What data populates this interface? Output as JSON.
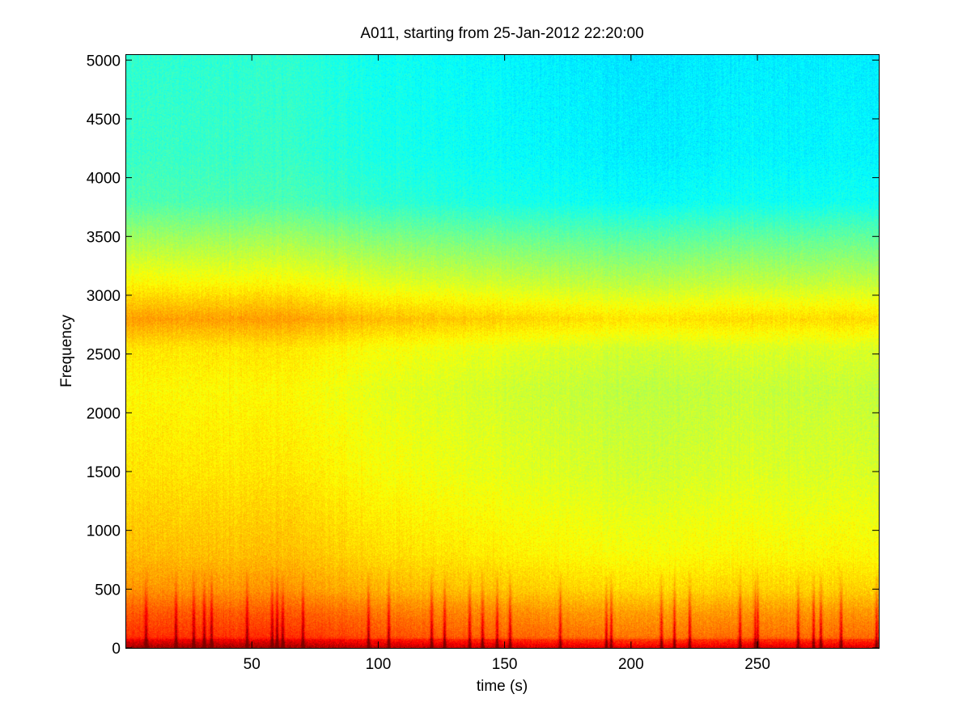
{
  "chart_data": {
    "type": "heatmap",
    "title": "A011, starting from 25-Jan-2012 22:20:00",
    "xlabel": "time (s)",
    "ylabel": "Frequency",
    "xlim": [
      0,
      298
    ],
    "ylim": [
      0,
      5050
    ],
    "x_ticks": [
      50,
      100,
      150,
      200,
      250
    ],
    "y_ticks": [
      0,
      500,
      1000,
      1500,
      2000,
      2500,
      3000,
      3500,
      4000,
      4500,
      5000
    ],
    "colormap": "jet",
    "grid": false,
    "intensity_profile_by_frequency": [
      {
        "frequency": 0,
        "level": 0.92
      },
      {
        "frequency": 100,
        "level": 0.8
      },
      {
        "frequency": 300,
        "level": 0.76
      },
      {
        "frequency": 500,
        "level": 0.7
      },
      {
        "frequency": 800,
        "level": 0.66
      },
      {
        "frequency": 1500,
        "level": 0.62
      },
      {
        "frequency": 2200,
        "level": 0.6
      },
      {
        "frequency": 2550,
        "level": 0.62
      },
      {
        "frequency": 2800,
        "level": 0.69
      },
      {
        "frequency": 3100,
        "level": 0.6
      },
      {
        "frequency": 3500,
        "level": 0.5
      },
      {
        "frequency": 3800,
        "level": 0.42
      },
      {
        "frequency": 4200,
        "level": 0.4
      },
      {
        "frequency": 5050,
        "level": 0.39
      }
    ],
    "time_profile": [
      {
        "time": 0,
        "level": 0.03
      },
      {
        "time": 60,
        "level": 0.03
      },
      {
        "time": 100,
        "level": 0.0
      },
      {
        "time": 150,
        "level": -0.02
      },
      {
        "time": 200,
        "level": -0.04
      },
      {
        "time": 250,
        "level": -0.03
      },
      {
        "time": 298,
        "level": -0.03
      }
    ],
    "broadband_events_time_s": [
      8,
      20,
      27,
      31,
      34,
      48,
      58,
      60,
      62,
      70,
      96,
      104,
      121,
      126,
      136,
      141,
      147,
      152,
      172,
      190,
      192,
      212,
      217,
      223,
      243,
      249,
      250,
      266,
      272,
      275,
      283,
      297
    ]
  }
}
